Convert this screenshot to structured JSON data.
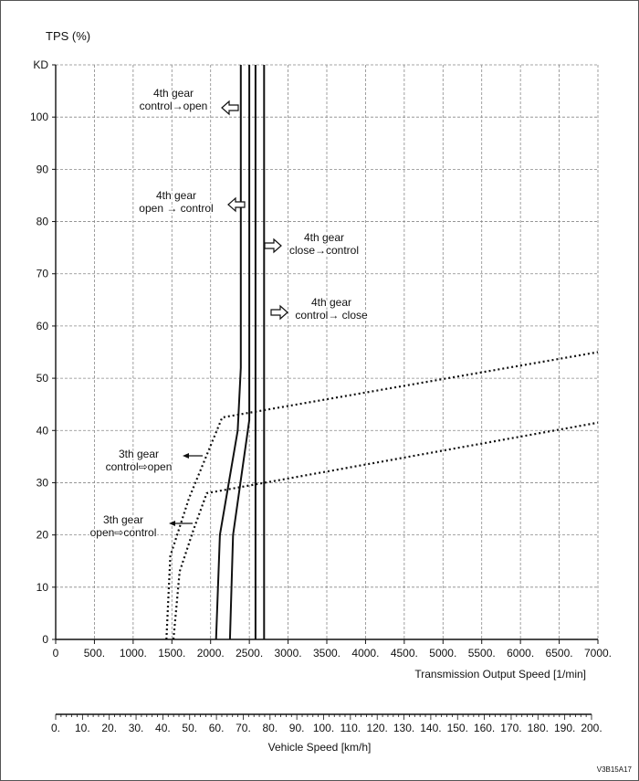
{
  "chart_data": {
    "type": "line",
    "ylabel": "TPS (%)",
    "xlabel": "Transmission Output Speed [1/min]",
    "x2label": "Vehicle Speed [km/h]",
    "xlim": [
      0,
      7000
    ],
    "ylim": [
      0,
      110
    ],
    "x_ticks": [
      0,
      500,
      1000,
      1500,
      2000,
      2500,
      3000,
      3500,
      4000,
      4500,
      5000,
      5500,
      6000,
      6500,
      7000
    ],
    "x_tick_labels": [
      "0",
      "500.",
      "1000.",
      "1500.",
      "2000.",
      "2500.",
      "3000.",
      "3500.",
      "4000.",
      "4500.",
      "5000.",
      "5500.",
      "6000.",
      "6500.",
      "7000."
    ],
    "y_ticks": [
      0,
      10,
      20,
      30,
      40,
      50,
      60,
      70,
      80,
      90,
      100,
      110
    ],
    "y_tick_labels": [
      "0",
      "10",
      "20",
      "30",
      "40",
      "50",
      "60",
      "70",
      "80",
      "90",
      "100",
      "KD"
    ],
    "x2lim": [
      0,
      200
    ],
    "x2_ticks": [
      0,
      10,
      20,
      30,
      40,
      50,
      60,
      70,
      80,
      90,
      100,
      110,
      120,
      130,
      140,
      150,
      160,
      170,
      180,
      190,
      200
    ],
    "x2_tick_labels": [
      "0.",
      "10.",
      "20.",
      "30.",
      "40.",
      "50.",
      "60.",
      "70.",
      "80.",
      "90.",
      "100.",
      "110.",
      "120.",
      "130.",
      "140.",
      "150.",
      "160.",
      "170.",
      "180.",
      "190.",
      "200."
    ],
    "grid": true,
    "series": [
      {
        "name": "3rd gear open-control",
        "style": "dotted",
        "x": [
          1430,
          1480,
          1720,
          2150,
          7000
        ],
        "y": [
          0,
          16,
          27,
          42.5,
          55
        ]
      },
      {
        "name": "3rd gear control-open",
        "style": "dotted",
        "x": [
          1520,
          1600,
          1780,
          1950,
          7000
        ],
        "y": [
          0,
          13,
          21,
          28,
          41.5
        ]
      },
      {
        "name": "4th gear open-control",
        "style": "solid",
        "x": [
          2070,
          2120,
          2350,
          2390,
          2390
        ],
        "y": [
          0,
          20,
          40,
          52,
          110
        ]
      },
      {
        "name": "4th gear control-open",
        "style": "solid",
        "x": [
          2250,
          2290,
          2500,
          2500
        ],
        "y": [
          0,
          20,
          42,
          110
        ]
      },
      {
        "name": "4th gear close-control",
        "style": "solid",
        "x": [
          2580,
          2580
        ],
        "y": [
          0,
          110
        ]
      },
      {
        "name": "4th gear control-close",
        "style": "solid",
        "x": [
          2690,
          2690
        ],
        "y": [
          0,
          110
        ]
      }
    ],
    "annotations": [
      {
        "lines": [
          "4th gear",
          "control→open"
        ],
        "arrow": "hollow-left"
      },
      {
        "lines": [
          "4th gear",
          "open → control"
        ],
        "arrow": "hollow-left"
      },
      {
        "lines": [
          "4th gear",
          "close→control"
        ],
        "arrow": "hollow-right"
      },
      {
        "lines": [
          "4th gear",
          "control→ close"
        ],
        "arrow": "hollow-right"
      },
      {
        "lines": [
          "3th gear",
          "control⇨open"
        ],
        "arrow": "thin-left"
      },
      {
        "lines": [
          "3th gear",
          "open⇨control"
        ],
        "arrow": "thin-left"
      }
    ],
    "figure_id": "V3B15A17"
  }
}
